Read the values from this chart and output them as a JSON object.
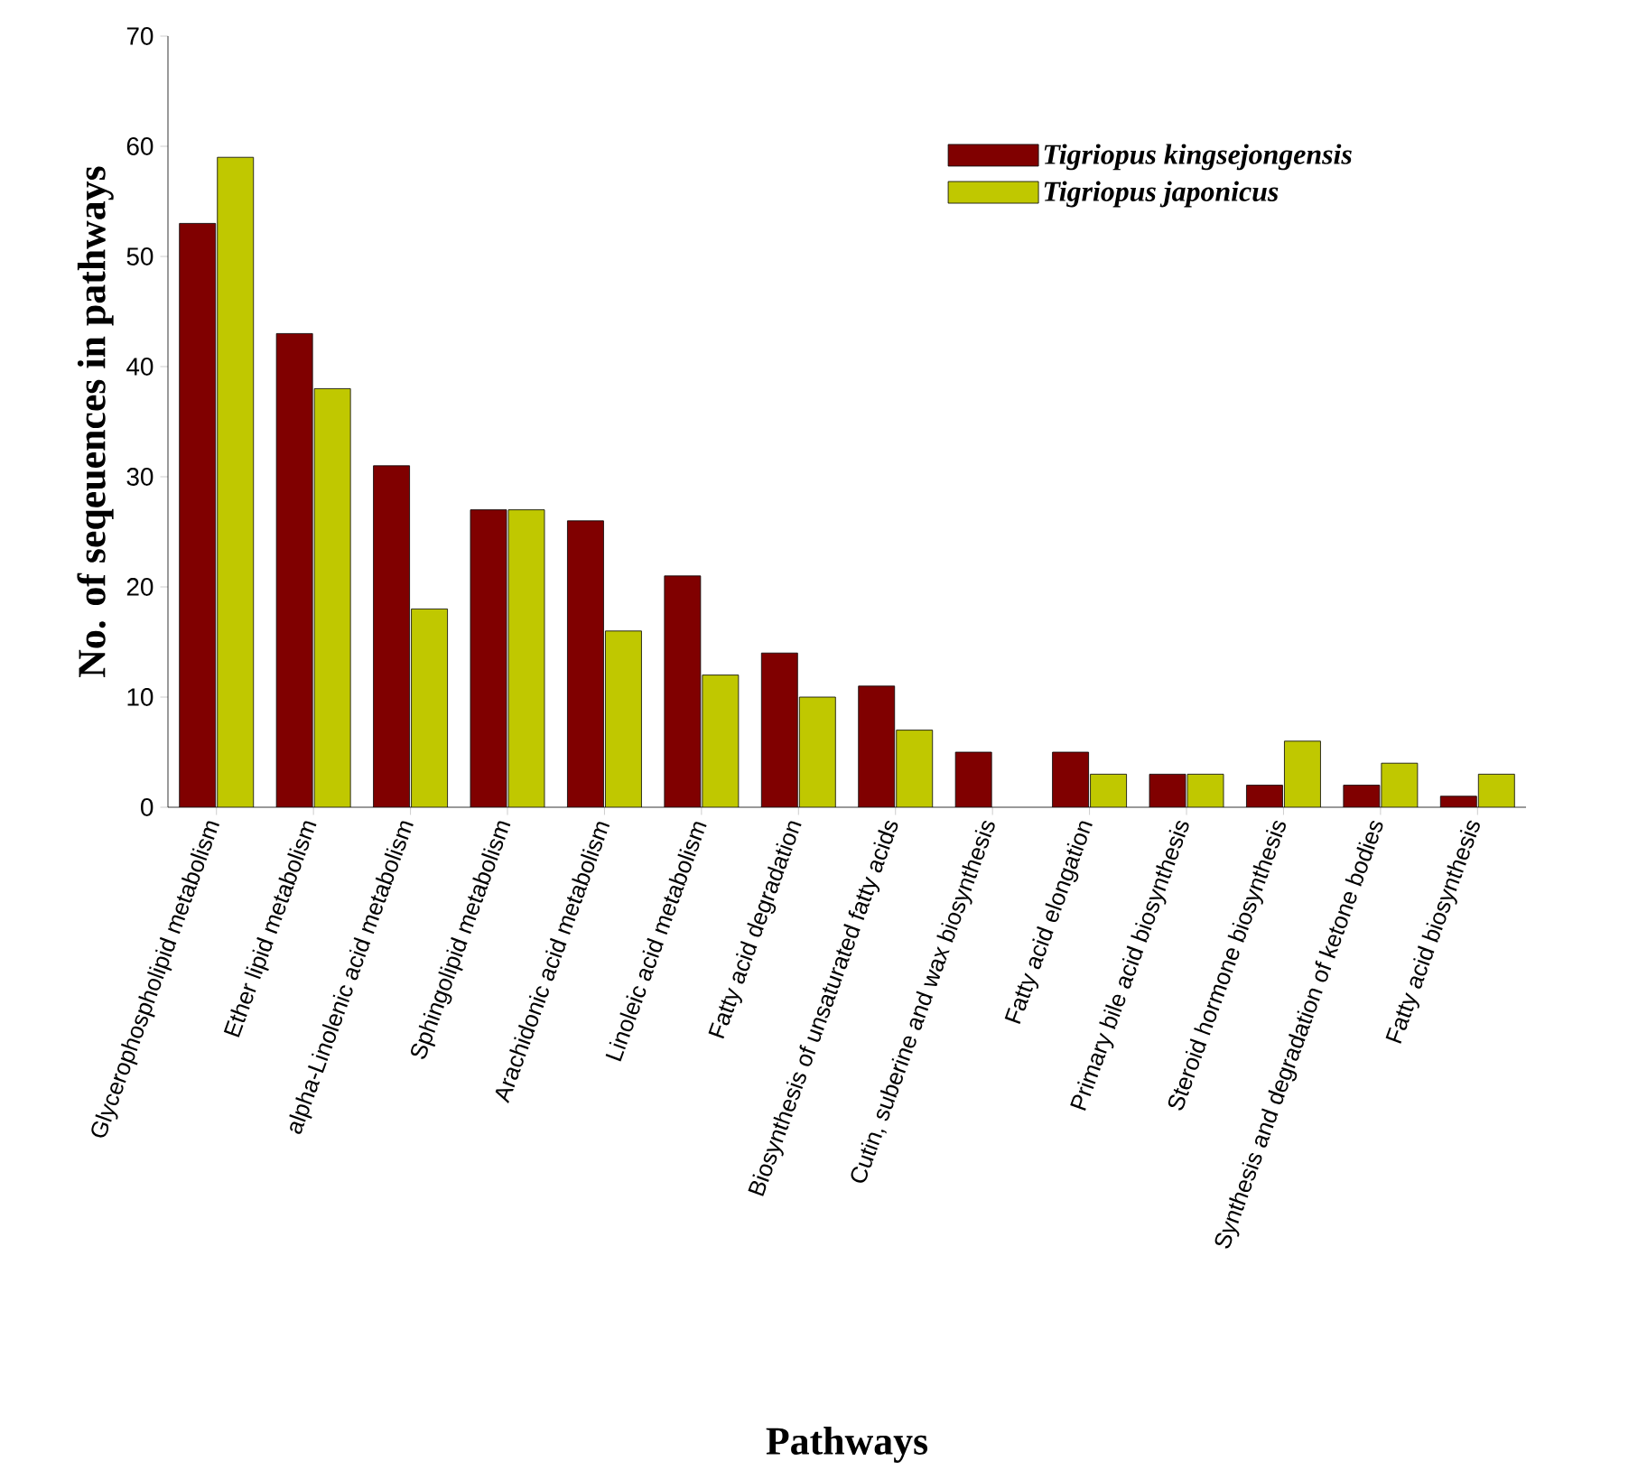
{
  "chart_data": {
    "type": "bar",
    "xlabel": "Pathways",
    "ylabel": "No. of seqeuences in pathways",
    "categories": [
      "Glycerophospholipid metabolism",
      "Ether lipid metabolism",
      "alpha-Linolenic acid metabolism",
      "Sphingolipid metabolism",
      "Arachidonic acid metabolism",
      "Linoleic acid metabolism",
      "Fatty acid degradation",
      "Biosynthesis of unsaturated fatty acids",
      "Cutin, suberine and wax biosynthesis",
      "Fatty acid elongation",
      "Primary bile acid biosynthesis",
      "Steroid hormone biosynthesis",
      "Synthesis and degradation of ketone bodies",
      "Fatty acid biosynthesis"
    ],
    "series": [
      {
        "name": "Tigriopus kingsejongensis",
        "color": "#800000",
        "values": [
          53,
          43,
          31,
          27,
          26,
          21,
          14,
          11,
          5,
          5,
          3,
          2,
          2,
          1
        ]
      },
      {
        "name": "Tigriopus japonicus",
        "color": "#c0c800",
        "values": [
          59,
          38,
          18,
          27,
          16,
          12,
          10,
          7,
          null,
          3,
          3,
          6,
          4,
          3
        ]
      }
    ],
    "ylim": [
      0,
      70
    ],
    "yticks": [
      0,
      10,
      20,
      30,
      40,
      50,
      60,
      70
    ],
    "grid": false,
    "legend": "top right"
  }
}
